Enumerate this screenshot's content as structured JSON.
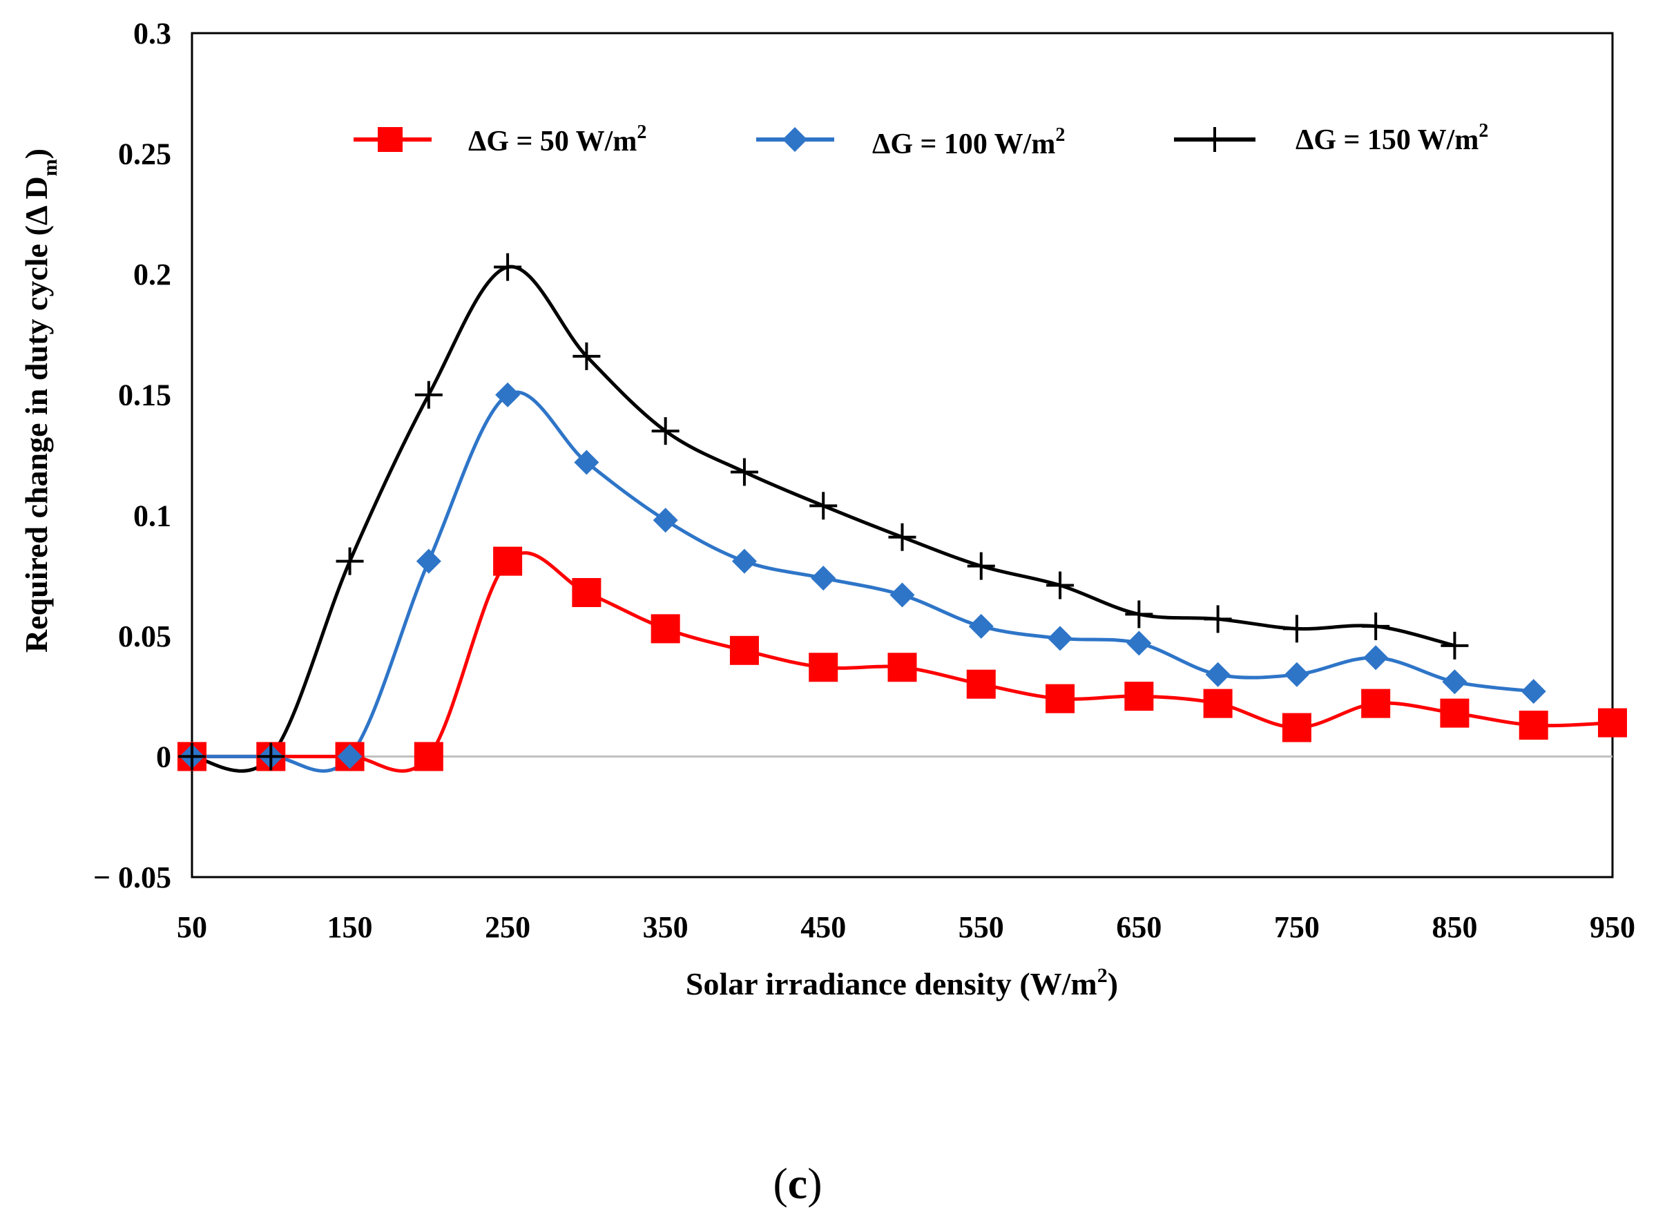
{
  "chart_data": {
    "type": "line",
    "title": "",
    "xlabel": "Solar irradiance density (W/m",
    "xlabel_sup": "2",
    "xlabel_end": ")",
    "ylabel": "Required change in duty cycle (Δ D",
    "ylabel_sub": "m",
    "ylabel_end": ")",
    "xlim": [
      50,
      950
    ],
    "ylim": [
      -0.05,
      0.3
    ],
    "x_ticks": [
      50,
      150,
      250,
      350,
      450,
      550,
      650,
      750,
      850,
      950
    ],
    "x_tick_labels": [
      "50",
      "150",
      "250",
      "350",
      "450",
      "550",
      "650",
      "750",
      "850",
      "950"
    ],
    "y_ticks": [
      -0.05,
      0,
      0.05,
      0.1,
      0.15,
      0.2,
      0.25,
      0.3
    ],
    "y_tick_labels": [
      "− 0.05",
      "0",
      "0.05",
      "0.1",
      "0.15",
      "0.2",
      "0.25",
      "0.3"
    ],
    "legend_position": "top",
    "series": [
      {
        "name": "ΔG = 50 W/m",
        "name_sup": "2",
        "color": "#ff0000",
        "marker": "square",
        "x": [
          50,
          100,
          150,
          200,
          250,
          300,
          350,
          400,
          450,
          500,
          550,
          600,
          650,
          700,
          750,
          800,
          850,
          900,
          950
        ],
        "y": [
          0,
          0,
          0,
          0,
          0.081,
          0.068,
          0.053,
          0.044,
          0.037,
          0.037,
          0.03,
          0.024,
          0.025,
          0.022,
          0.012,
          0.022,
          0.018,
          0.013,
          0.014
        ]
      },
      {
        "name": "ΔG = 100 W/m",
        "name_sup": "2",
        "color": "#2e75c8",
        "marker": "diamond",
        "x": [
          50,
          100,
          150,
          200,
          250,
          300,
          350,
          400,
          450,
          500,
          550,
          600,
          650,
          700,
          750,
          800,
          850,
          900
        ],
        "y": [
          0,
          0,
          0,
          0.081,
          0.15,
          0.122,
          0.098,
          0.081,
          0.074,
          0.067,
          0.054,
          0.049,
          0.047,
          0.034,
          0.034,
          0.041,
          0.031,
          0.027
        ]
      },
      {
        "name": "ΔG = 150 W/m",
        "name_sup": "2",
        "color": "#000000",
        "marker": "plus",
        "x": [
          50,
          100,
          150,
          200,
          250,
          300,
          350,
          400,
          450,
          500,
          550,
          600,
          650,
          700,
          750,
          800,
          850
        ],
        "y": [
          0,
          0,
          0.081,
          0.15,
          0.203,
          0.166,
          0.135,
          0.118,
          0.104,
          0.091,
          0.079,
          0.071,
          0.059,
          0.057,
          0.053,
          0.054,
          0.046
        ]
      }
    ]
  },
  "caption": {
    "open": "(",
    "letter": "c",
    "close": ")"
  }
}
